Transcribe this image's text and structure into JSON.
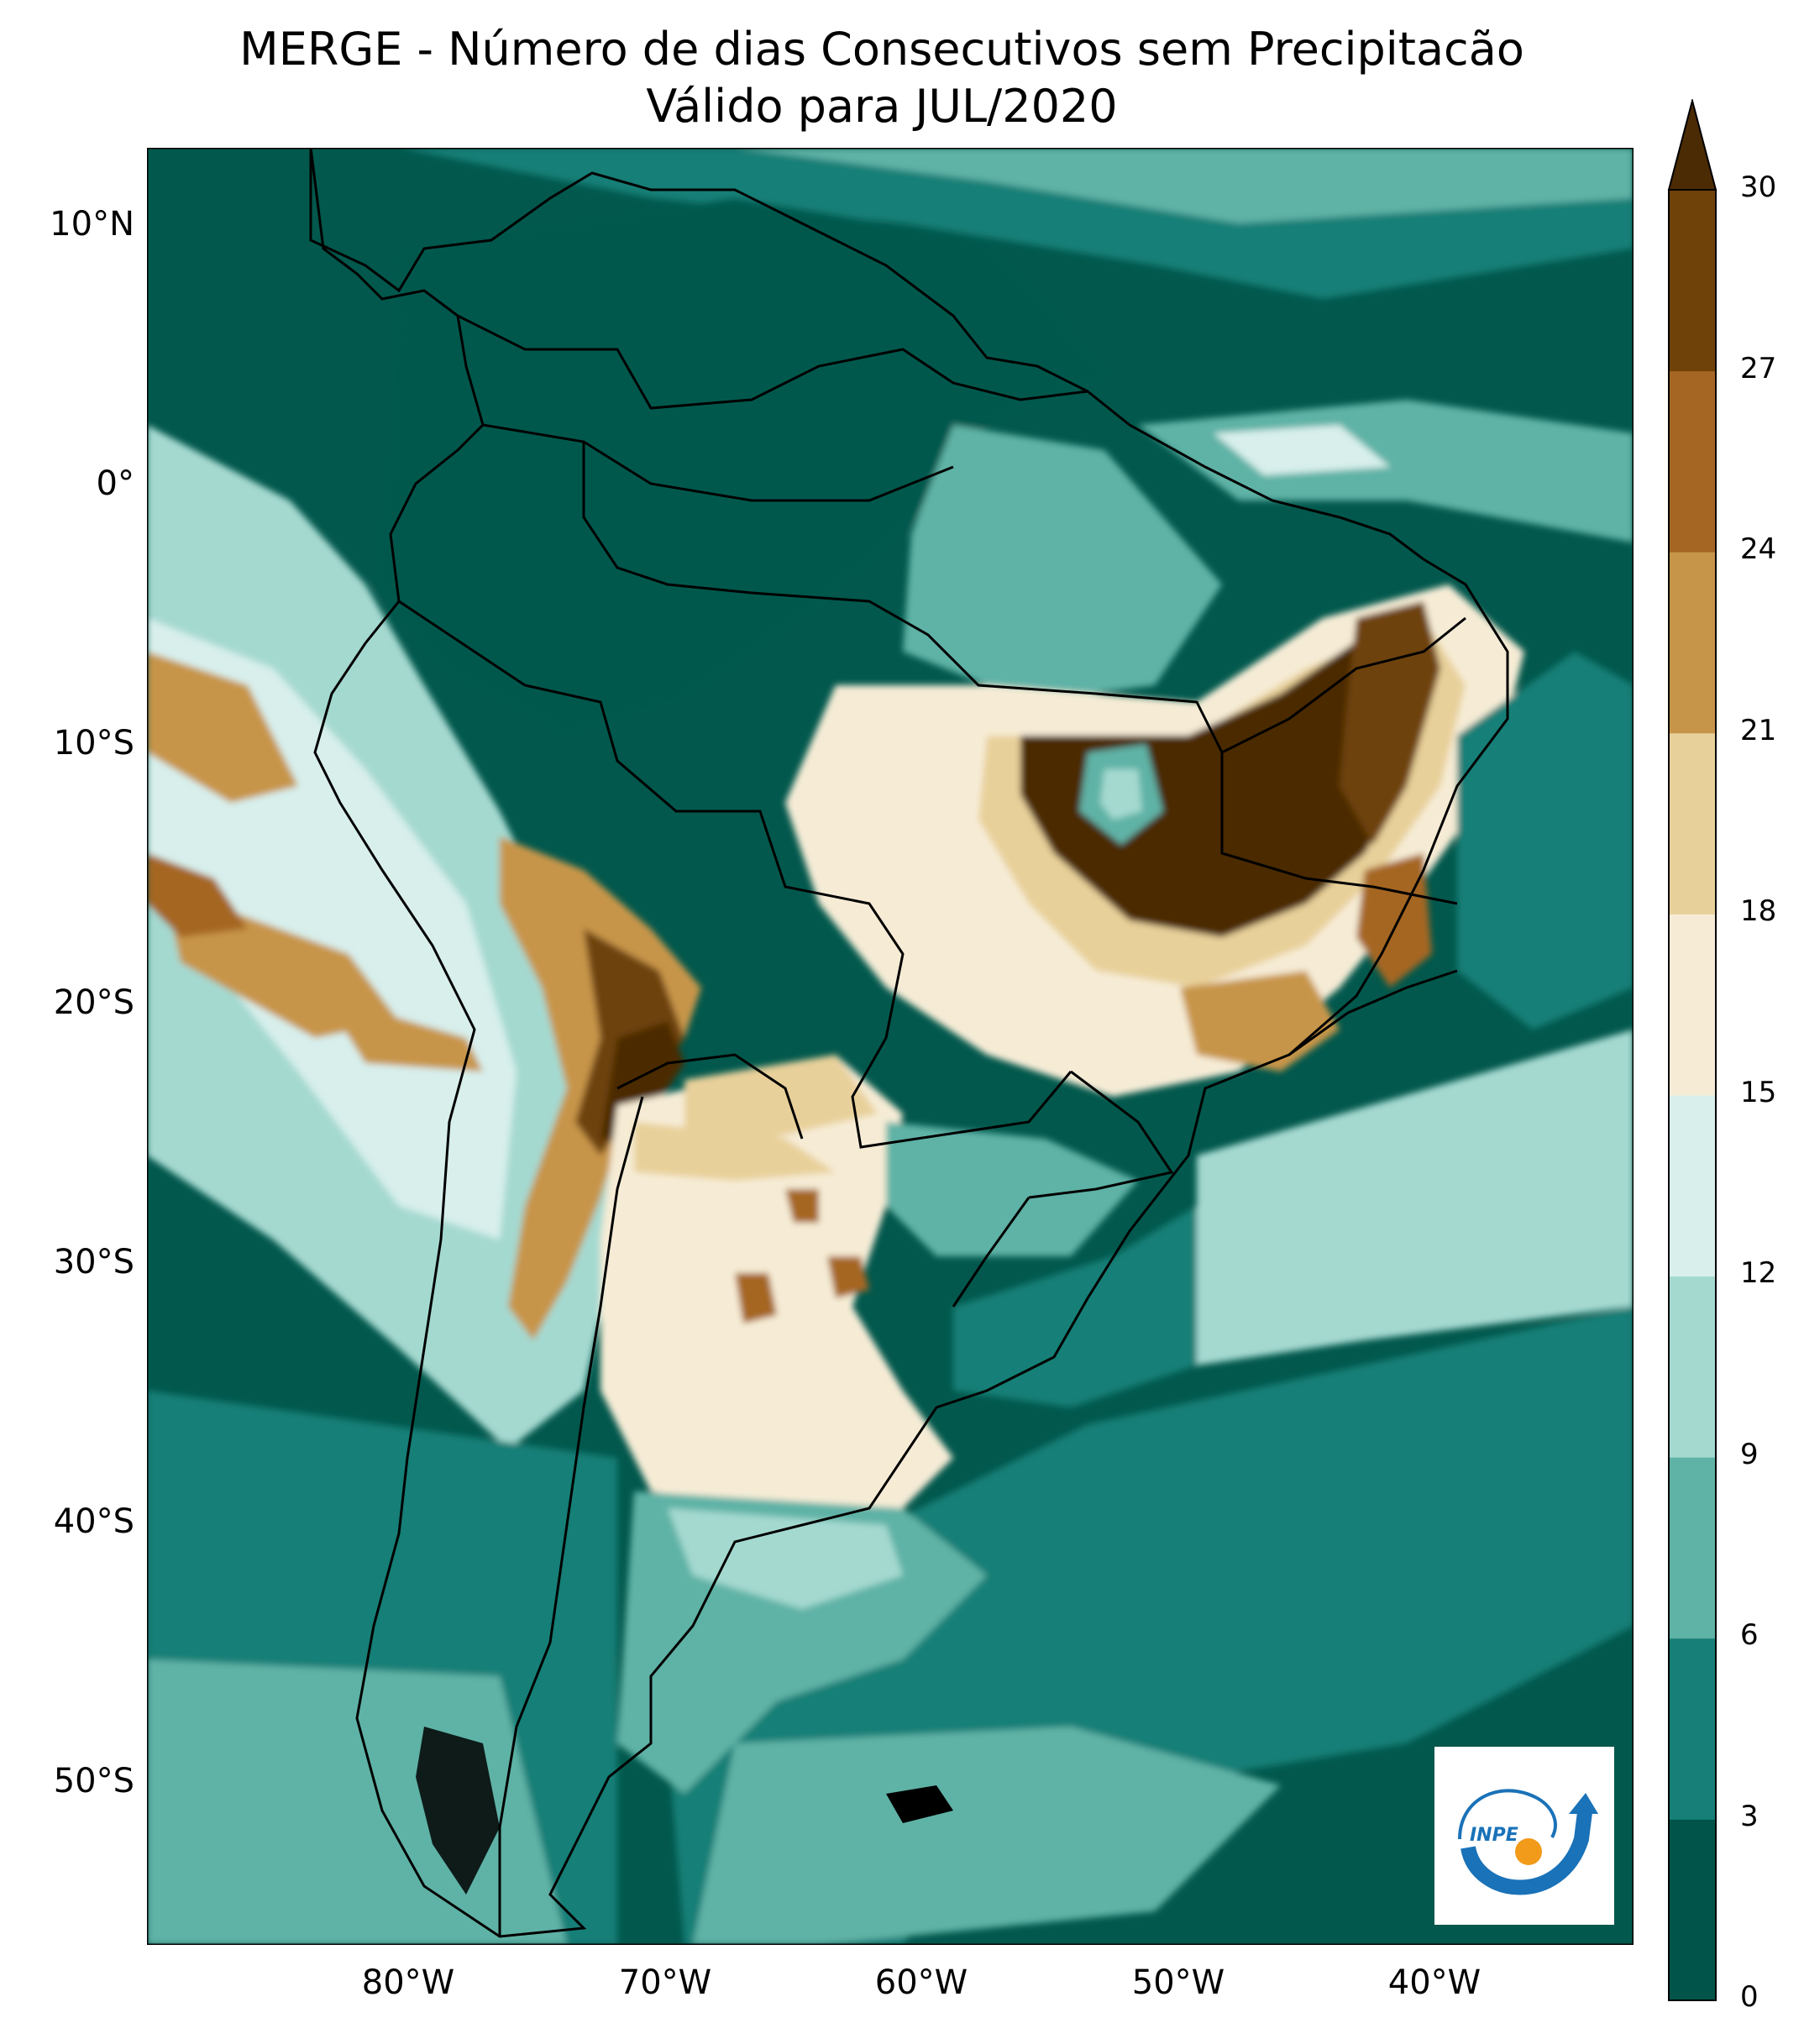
{
  "title": {
    "line1": "MERGE - Número de dias Consecutivos sem Precipitacão",
    "line2": "Válido para JUL/2020"
  },
  "map": {
    "lat_ticks": [
      "10°N",
      "0°",
      "10°S",
      "20°S",
      "30°S",
      "40°S",
      "50°S"
    ],
    "lon_ticks": [
      "80°W",
      "70°W",
      "60°W",
      "50°W",
      "40°W"
    ],
    "region": "South America",
    "extent_deg": {
      "lon_min": -90,
      "lon_max": -32,
      "lat_min": -56,
      "lat_max": 13
    }
  },
  "colorbar": {
    "ticks": [
      "0",
      "3",
      "6",
      "9",
      "12",
      "15",
      "18",
      "21",
      "24",
      "27",
      "30"
    ],
    "colors": [
      "#01544a",
      "#177f77",
      "#5fb2a6",
      "#a4d9d0",
      "#d8efec",
      "#f6ecd6",
      "#e8d09a",
      "#c79549",
      "#a56623",
      "#6e4209",
      "#4b2b04"
    ],
    "extend": "max",
    "units": ""
  },
  "logo": {
    "text": "INPE",
    "primary_color": "#1a72b8",
    "accent_color": "#f29a1a"
  }
}
